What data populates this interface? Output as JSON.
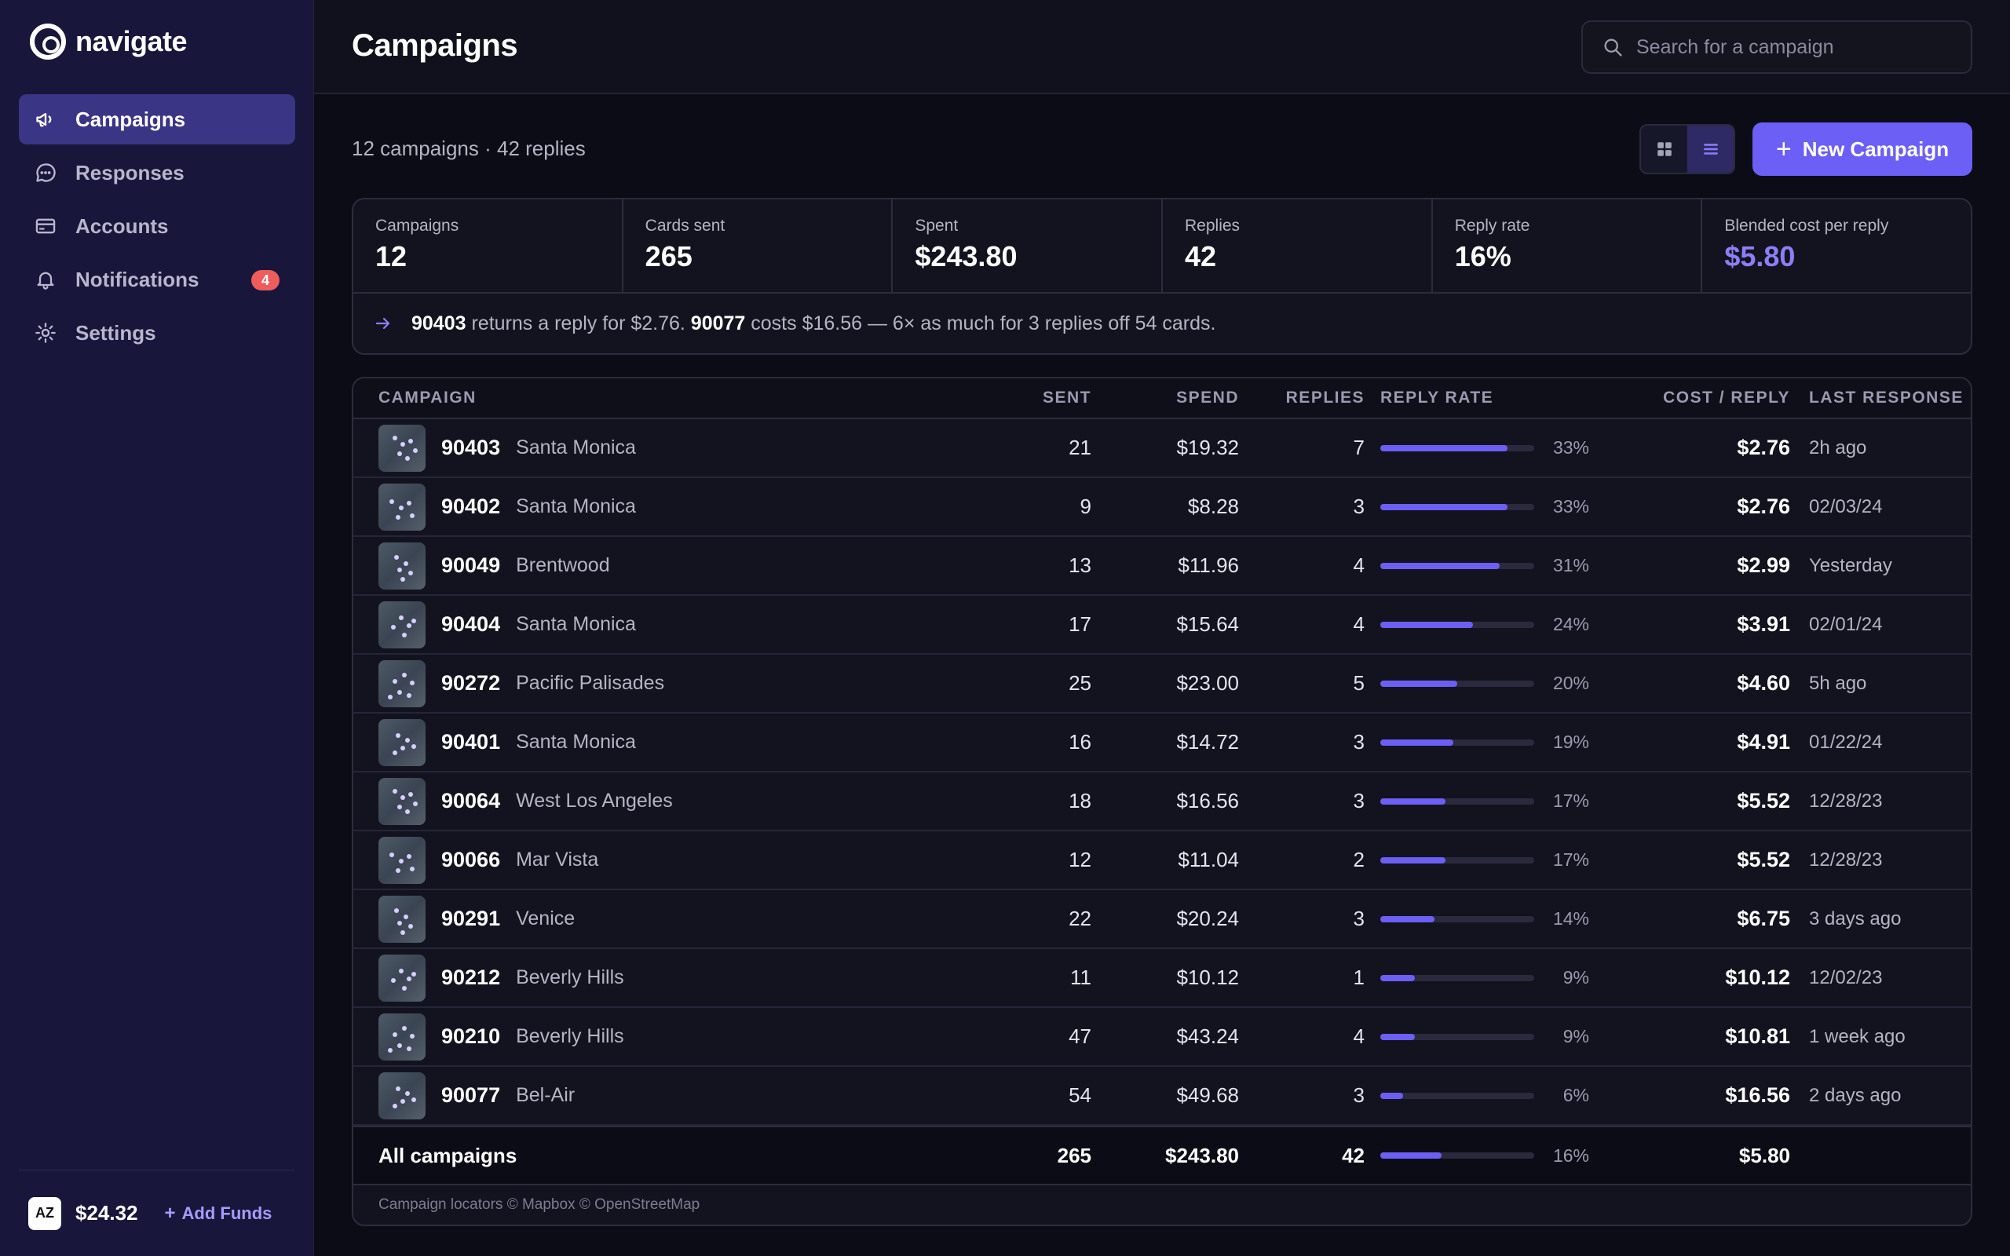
{
  "app": {
    "name": "navigate"
  },
  "sidebar": {
    "items": [
      {
        "label": "Campaigns",
        "icon": "megaphone-icon",
        "active": true
      },
      {
        "label": "Responses",
        "icon": "chat-bubble-icon"
      },
      {
        "label": "Accounts",
        "icon": "credit-card-icon"
      },
      {
        "label": "Notifications",
        "icon": "bell-icon",
        "badge": "4"
      },
      {
        "label": "Settings",
        "icon": "gear-icon"
      }
    ],
    "footer": {
      "avatar_initials": "AZ",
      "balance": "$24.32",
      "add_funds_label": "Add Funds"
    }
  },
  "header": {
    "title": "Campaigns",
    "search": {
      "placeholder": "Search for a campaign",
      "value": ""
    }
  },
  "toolbar": {
    "summary": "12 campaigns · 42 replies",
    "view_modes": [
      "grid-view-icon",
      "list-view-icon"
    ],
    "active_view": "list",
    "new_campaign_label": "New Campaign"
  },
  "stats": [
    {
      "label": "Campaigns",
      "value": "12"
    },
    {
      "label": "Cards sent",
      "value": "265"
    },
    {
      "label": "Spent",
      "value": "$243.80"
    },
    {
      "label": "Replies",
      "value": "42"
    },
    {
      "label": "Reply rate",
      "value": "16%"
    },
    {
      "label": "Blended cost per reply",
      "value": "$5.80",
      "accent": true
    }
  ],
  "insight": {
    "best_zip": "90403",
    "best_text": " returns a reply for $2.76. ",
    "worst_zip": "90077",
    "worst_text": " costs $16.56 — 6× as much for 3 replies off 54 cards."
  },
  "table": {
    "columns": {
      "campaign": "CAMPAIGN",
      "sent": "SENT",
      "spend": "SPEND",
      "replies": "REPLIES",
      "reply_rate": "REPLY RATE",
      "cost_per_reply": "COST / REPLY",
      "last_response": "LAST RESPONSE"
    },
    "rows": [
      {
        "zip": "90403",
        "area": "Santa Monica",
        "sent": "21",
        "spend": "$19.32",
        "replies": "7",
        "rate": "33%",
        "rate_value": 0.33,
        "cost": "$2.76",
        "last": "2h ago"
      },
      {
        "zip": "90402",
        "area": "Santa Monica",
        "sent": "9",
        "spend": "$8.28",
        "replies": "3",
        "rate": "33%",
        "rate_value": 0.33,
        "cost": "$2.76",
        "last": "02/03/24"
      },
      {
        "zip": "90049",
        "area": "Brentwood",
        "sent": "13",
        "spend": "$11.96",
        "replies": "4",
        "rate": "31%",
        "rate_value": 0.31,
        "cost": "$2.99",
        "last": "Yesterday"
      },
      {
        "zip": "90404",
        "area": "Santa Monica",
        "sent": "17",
        "spend": "$15.64",
        "replies": "4",
        "rate": "24%",
        "rate_value": 0.24,
        "cost": "$3.91",
        "last": "02/01/24"
      },
      {
        "zip": "90272",
        "area": "Pacific Palisades",
        "sent": "25",
        "spend": "$23.00",
        "replies": "5",
        "rate": "20%",
        "rate_value": 0.2,
        "cost": "$4.60",
        "last": "5h ago"
      },
      {
        "zip": "90401",
        "area": "Santa Monica",
        "sent": "16",
        "spend": "$14.72",
        "replies": "3",
        "rate": "19%",
        "rate_value": 0.19,
        "cost": "$4.91",
        "last": "01/22/24"
      },
      {
        "zip": "90064",
        "area": "West Los Angeles",
        "sent": "18",
        "spend": "$16.56",
        "replies": "3",
        "rate": "17%",
        "rate_value": 0.17,
        "cost": "$5.52",
        "last": "12/28/23"
      },
      {
        "zip": "90066",
        "area": "Mar Vista",
        "sent": "12",
        "spend": "$11.04",
        "replies": "2",
        "rate": "17%",
        "rate_value": 0.17,
        "cost": "$5.52",
        "last": "12/28/23"
      },
      {
        "zip": "90291",
        "area": "Venice",
        "sent": "22",
        "spend": "$20.24",
        "replies": "3",
        "rate": "14%",
        "rate_value": 0.14,
        "cost": "$6.75",
        "last": "3 days ago"
      },
      {
        "zip": "90212",
        "area": "Beverly Hills",
        "sent": "11",
        "spend": "$10.12",
        "replies": "1",
        "rate": "9%",
        "rate_value": 0.09,
        "cost": "$10.12",
        "last": "12/02/23"
      },
      {
        "zip": "90210",
        "area": "Beverly Hills",
        "sent": "47",
        "spend": "$43.24",
        "replies": "4",
        "rate": "9%",
        "rate_value": 0.09,
        "cost": "$10.81",
        "last": "1 week ago"
      },
      {
        "zip": "90077",
        "area": "Bel-Air",
        "sent": "54",
        "spend": "$49.68",
        "replies": "3",
        "rate": "6%",
        "rate_value": 0.06,
        "cost": "$16.56",
        "last": "2 days ago"
      }
    ],
    "footer": {
      "label": "All campaigns",
      "sent": "265",
      "spend": "$243.80",
      "replies": "42",
      "rate": "16%",
      "rate_value": 0.16,
      "cost": "$5.80"
    },
    "attribution": "Campaign locators © Mapbox © OpenStreetMap"
  },
  "colors": {
    "accent": "#6c5ff5",
    "sidebar_bg": "#18163a",
    "badge": "#ef5c5c"
  }
}
